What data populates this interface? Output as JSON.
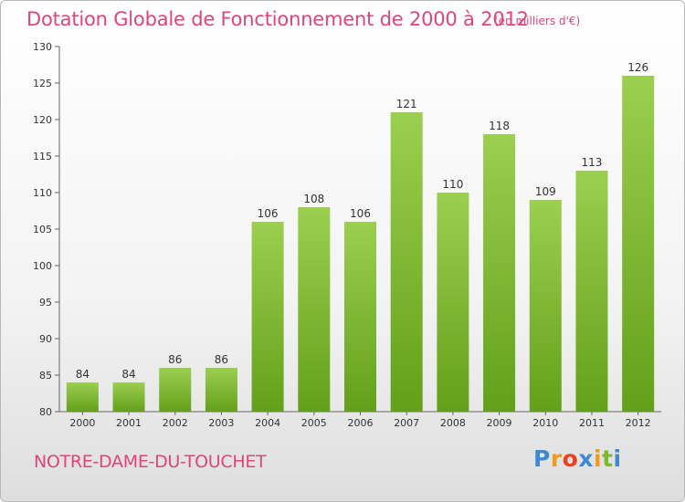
{
  "header": {
    "title": "Dotation Globale de Fonctionnement de 2000 à 2012",
    "unit": "(en milliers d'€)"
  },
  "footer": {
    "place": "NOTRE-DAME-DU-TOUCHET",
    "logo_text": "Proxiti"
  },
  "colors": {
    "accent": "#e0447b",
    "bar_light": "#9ccf4f",
    "bar_dark": "#63a01a",
    "logo": [
      "#3d8ad1",
      "#f39a1c",
      "#e8421f",
      "#3d8ad1",
      "#f39a1c",
      "#7cb92c",
      "#3d8ad1"
    ]
  },
  "chart_data": {
    "type": "bar",
    "title": "Dotation Globale de Fonctionnement de 2000 à 2012",
    "subtitle": "(en milliers d'€)",
    "xlabel": "",
    "ylabel": "",
    "categories": [
      "2000",
      "2001",
      "2002",
      "2003",
      "2004",
      "2005",
      "2006",
      "2007",
      "2008",
      "2009",
      "2010",
      "2011",
      "2012"
    ],
    "values": [
      84,
      84,
      86,
      86,
      106,
      108,
      106,
      121,
      110,
      118,
      109,
      113,
      126
    ],
    "ylim": [
      80,
      130
    ],
    "yticks": [
      80,
      85,
      90,
      95,
      100,
      105,
      110,
      115,
      120,
      125,
      130
    ],
    "grid": false,
    "legend": "none"
  }
}
